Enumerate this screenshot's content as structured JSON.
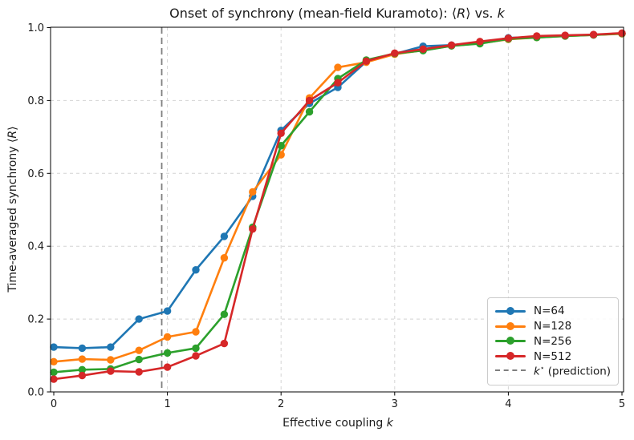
{
  "figure": {
    "title": {
      "part1": "Onset of synchrony (mean-field Kuramoto): ⟨",
      "part2": "R",
      "part3": "⟩ vs. ",
      "part4": "k"
    },
    "xlabel": {
      "part1": "Effective coupling ",
      "part2": "k"
    },
    "ylabel": {
      "part1": "Time-averaged synchrony ⟨",
      "part2": "R",
      "part3": "⟩"
    }
  },
  "chart_data": {
    "type": "line",
    "title": "Onset of synchrony (mean-field Kuramoto): ⟨R⟩ vs. k",
    "xlabel": "Effective coupling k",
    "ylabel": "Time-averaged synchrony ⟨R⟩",
    "xlim": [
      0,
      5
    ],
    "ylim": [
      0.0,
      1.0
    ],
    "xticks": [
      "0",
      "1",
      "2",
      "3",
      "4",
      "5"
    ],
    "yticks": [
      "0.0",
      "0.2",
      "0.4",
      "0.6",
      "0.8",
      "1.0"
    ],
    "grid": true,
    "grid_style": "dashed",
    "legend_position": "lower right",
    "x": [
      0,
      0.25,
      0.5,
      0.75,
      1.0,
      1.25,
      1.5,
      1.75,
      2.0,
      2.25,
      2.5,
      2.75,
      3.0,
      3.25,
      3.5,
      3.75,
      4.0,
      4.25,
      4.5,
      4.75,
      5.0
    ],
    "series": [
      {
        "name": "N=64",
        "color": "#1f77b4",
        "values": [
          0.123,
          0.12,
          0.123,
          0.2,
          0.222,
          0.335,
          0.427,
          0.537,
          0.718,
          0.792,
          0.836,
          0.907,
          0.928,
          0.949,
          0.952,
          0.957,
          0.972,
          0.974,
          0.978,
          0.98,
          0.984
        ]
      },
      {
        "name": "N=128",
        "color": "#ff7f0e",
        "values": [
          0.083,
          0.09,
          0.088,
          0.114,
          0.151,
          0.165,
          0.368,
          0.549,
          0.651,
          0.807,
          0.891,
          0.905,
          0.927,
          0.938,
          0.95,
          0.957,
          0.968,
          0.973,
          0.977,
          0.98,
          0.983
        ]
      },
      {
        "name": "N=256",
        "color": "#2ca02c",
        "values": [
          0.054,
          0.061,
          0.063,
          0.089,
          0.107,
          0.12,
          0.213,
          0.452,
          0.676,
          0.769,
          0.86,
          0.911,
          0.929,
          0.937,
          0.95,
          0.956,
          0.969,
          0.973,
          0.977,
          0.98,
          0.984
        ]
      },
      {
        "name": "N=512",
        "color": "#d62728",
        "values": [
          0.035,
          0.045,
          0.057,
          0.055,
          0.068,
          0.099,
          0.133,
          0.447,
          0.71,
          0.8,
          0.849,
          0.908,
          0.93,
          0.941,
          0.952,
          0.962,
          0.971,
          0.977,
          0.979,
          0.981,
          0.985
        ]
      }
    ],
    "vline": {
      "x": 0.95,
      "color": "#7f7f7f",
      "style": "dashed",
      "label_var": "k",
      "label_sup": "⋆",
      "label_rest": " (prediction)"
    }
  }
}
